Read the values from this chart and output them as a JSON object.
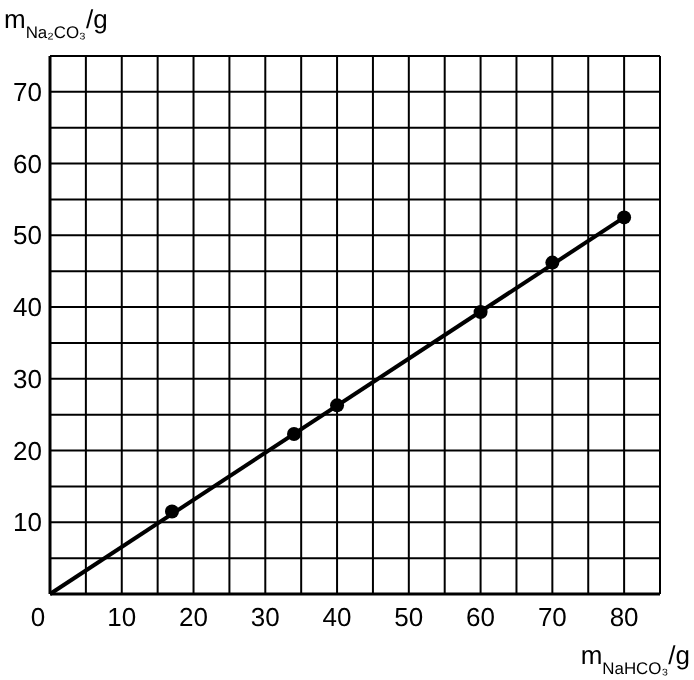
{
  "chart_data": {
    "type": "scatter",
    "xlabel": "m$_{NaHCO₃}$/g",
    "ylabel": "m$_{Na₂CO₃}$/g",
    "xlim": [
      0,
      85
    ],
    "ylim": [
      0,
      75
    ],
    "xticks": [
      0,
      {
        "value": 5,
        "label": null
      },
      10,
      {
        "value": 15,
        "label": null
      },
      20,
      {
        "value": 25,
        "label": null
      },
      30,
      {
        "value": 35,
        "label": null
      },
      40,
      {
        "value": 45,
        "label": null
      },
      50,
      {
        "value": 55,
        "label": null
      },
      60,
      {
        "value": 65,
        "label": null
      },
      70,
      {
        "value": 75,
        "label": null
      },
      80,
      {
        "value": 85,
        "label": null
      }
    ],
    "yticks": [
      {
        "value": 5,
        "label": null
      },
      10,
      {
        "value": 15,
        "label": null
      },
      20,
      {
        "value": 25,
        "label": null
      },
      30,
      {
        "value": 35,
        "label": null
      },
      40,
      {
        "value": 45,
        "label": null
      },
      50,
      {
        "value": 55,
        "label": null
      },
      60,
      {
        "value": 65,
        "label": null
      },
      70,
      {
        "value": 75,
        "label": null
      }
    ],
    "grid": true,
    "series": [
      {
        "type": "line",
        "color": "#000000",
        "x": [
          0,
          80
        ],
        "values": [
          0,
          52.5
        ]
      },
      {
        "color": "#000000",
        "marker": "circle",
        "x": [
          17,
          34,
          40,
          60,
          70,
          80
        ],
        "values": [
          11.5,
          22.3,
          26.3,
          39.3,
          46.2,
          52.5
        ]
      }
    ]
  }
}
